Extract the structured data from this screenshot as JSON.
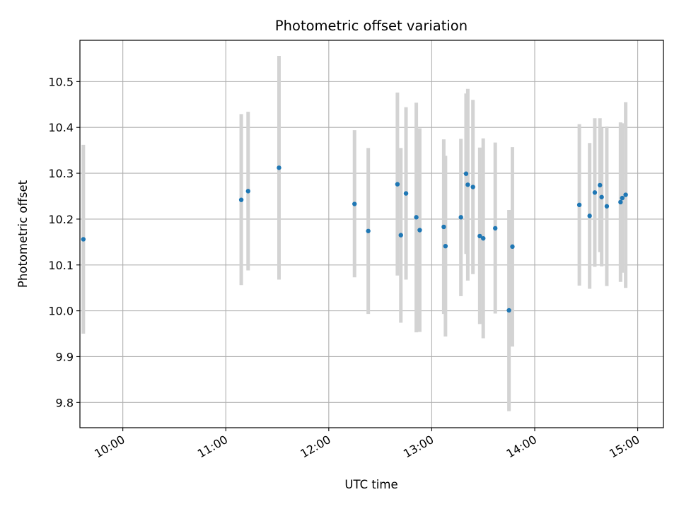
{
  "chart_data": {
    "type": "scatter",
    "title": "Photometric offset variation",
    "xlabel": "UTC time",
    "ylabel": "Photometric offset",
    "x_unit": "UTC time of day (HH:MM)",
    "xlim": [
      "09:35",
      "15:15"
    ],
    "ylim": [
      9.745,
      10.59
    ],
    "x_ticks": [
      "10:00",
      "11:00",
      "12:00",
      "13:00",
      "14:00",
      "15:00"
    ],
    "y_ticks": [
      9.8,
      9.9,
      10.0,
      10.1,
      10.2,
      10.3,
      10.4,
      10.5
    ],
    "y_tick_labels": [
      "9.8",
      "9.9",
      "10.0",
      "10.1",
      "10.2",
      "10.3",
      "10.4",
      "10.5"
    ],
    "grid": true,
    "point_color": "#1f77b4",
    "errorbar_color": "#d3d3d3",
    "series": [
      {
        "points": [
          {
            "x": "09:37",
            "y": 10.156,
            "ylo": 9.95,
            "yhi": 10.362
          },
          {
            "x": "11:09",
            "y": 10.242,
            "ylo": 10.056,
            "yhi": 10.429
          },
          {
            "x": "11:13",
            "y": 10.261,
            "ylo": 10.088,
            "yhi": 10.434
          },
          {
            "x": "11:31",
            "y": 10.312,
            "ylo": 10.068,
            "yhi": 10.556
          },
          {
            "x": "12:15",
            "y": 10.233,
            "ylo": 10.073,
            "yhi": 10.394
          },
          {
            "x": "12:23",
            "y": 10.174,
            "ylo": 9.993,
            "yhi": 10.355
          },
          {
            "x": "12:40",
            "y": 10.276,
            "ylo": 10.077,
            "yhi": 10.476
          },
          {
            "x": "12:42",
            "y": 10.165,
            "ylo": 9.974,
            "yhi": 10.355
          },
          {
            "x": "12:45",
            "y": 10.256,
            "ylo": 10.068,
            "yhi": 10.444
          },
          {
            "x": "12:51",
            "y": 10.204,
            "ylo": 9.953,
            "yhi": 10.454
          },
          {
            "x": "12:53",
            "y": 10.176,
            "ylo": 9.954,
            "yhi": 10.398
          },
          {
            "x": "13:07",
            "y": 10.183,
            "ylo": 9.993,
            "yhi": 10.374
          },
          {
            "x": "13:08",
            "y": 10.141,
            "ylo": 9.944,
            "yhi": 10.338
          },
          {
            "x": "13:17",
            "y": 10.204,
            "ylo": 10.032,
            "yhi": 10.375
          },
          {
            "x": "13:20",
            "y": 10.299,
            "ylo": 10.124,
            "yhi": 10.474
          },
          {
            "x": "13:21",
            "y": 10.275,
            "ylo": 10.066,
            "yhi": 10.484
          },
          {
            "x": "13:24",
            "y": 10.27,
            "ylo": 10.08,
            "yhi": 10.46
          },
          {
            "x": "13:28",
            "y": 10.163,
            "ylo": 9.971,
            "yhi": 10.356
          },
          {
            "x": "13:30",
            "y": 10.158,
            "ylo": 9.94,
            "yhi": 10.376
          },
          {
            "x": "13:37",
            "y": 10.18,
            "ylo": 9.994,
            "yhi": 10.367
          },
          {
            "x": "13:45",
            "y": 10.001,
            "ylo": 9.781,
            "yhi": 10.22
          },
          {
            "x": "13:47",
            "y": 10.14,
            "ylo": 9.922,
            "yhi": 10.357
          },
          {
            "x": "14:26",
            "y": 10.231,
            "ylo": 10.055,
            "yhi": 10.407
          },
          {
            "x": "14:32",
            "y": 10.207,
            "ylo": 10.048,
            "yhi": 10.366
          },
          {
            "x": "14:35",
            "y": 10.258,
            "ylo": 10.096,
            "yhi": 10.42
          },
          {
            "x": "14:38",
            "y": 10.274,
            "ylo": 10.128,
            "yhi": 10.42
          },
          {
            "x": "14:39",
            "y": 10.248,
            "ylo": 10.097,
            "yhi": 10.399
          },
          {
            "x": "14:42",
            "y": 10.228,
            "ylo": 10.054,
            "yhi": 10.402
          },
          {
            "x": "14:50",
            "y": 10.237,
            "ylo": 10.063,
            "yhi": 10.411
          },
          {
            "x": "14:51",
            "y": 10.246,
            "ylo": 10.083,
            "yhi": 10.409
          },
          {
            "x": "14:53",
            "y": 10.253,
            "ylo": 10.05,
            "yhi": 10.455
          }
        ]
      }
    ]
  }
}
